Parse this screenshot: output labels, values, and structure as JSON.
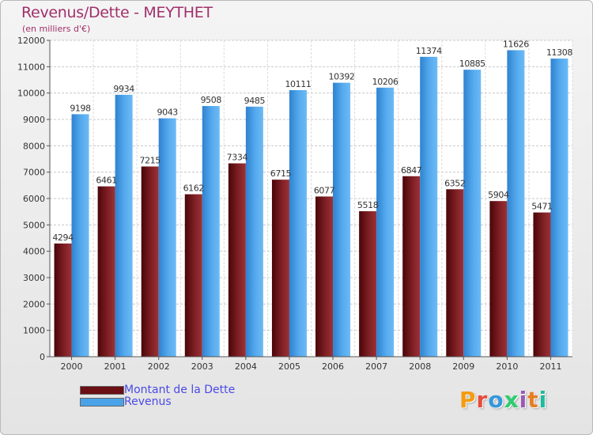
{
  "header": {
    "title": "Revenus/Dette - MEYTHET",
    "subtitle": "(en milliers d'€)"
  },
  "legend": {
    "items": [
      {
        "label": "Montant de la Dette",
        "color": "#6b0f14"
      },
      {
        "label": "Revenus",
        "color": "#4aa3e8"
      }
    ]
  },
  "logo": {
    "text": "Proxiti",
    "colors": [
      "#f39c12",
      "#e74c3c",
      "#3498db",
      "#2ecc71",
      "#9b59b6",
      "#e67e22",
      "#1abc9c"
    ]
  },
  "chart_data": {
    "type": "bar",
    "categories": [
      "2000",
      "2001",
      "2002",
      "2003",
      "2004",
      "2005",
      "2006",
      "2007",
      "2008",
      "2009",
      "2010",
      "2011"
    ],
    "series": [
      {
        "name": "Montant de la Dette",
        "values": [
          4294,
          6461,
          7215,
          6162,
          7334,
          6715,
          6077,
          5518,
          6847,
          6352,
          5904,
          5471
        ],
        "color": "#7a1a1e"
      },
      {
        "name": "Revenus",
        "values": [
          9198,
          9934,
          9043,
          9508,
          9485,
          10111,
          10392,
          10206,
          11374,
          10885,
          11626,
          11308
        ],
        "color": "#4aa3e8"
      }
    ],
    "data_labels": [
      [
        "4294",
        "6461",
        "7215",
        "6162",
        "7334",
        "6715",
        "6077",
        "5518",
        "6847",
        "6352",
        "5904",
        "5471"
      ],
      [
        "9198",
        "9934",
        "9043",
        "9508",
        "9485",
        "10111",
        "10392",
        "10206",
        "11374",
        "10885",
        "11626",
        "11308"
      ]
    ],
    "ylim": [
      0,
      12000
    ],
    "yticks": [
      "0",
      "1000",
      "2000",
      "3000",
      "4000",
      "5000",
      "6000",
      "7000",
      "8000",
      "9000",
      "10000",
      "11000",
      "12000"
    ],
    "grid": true,
    "legend_position": "bottom-left"
  }
}
